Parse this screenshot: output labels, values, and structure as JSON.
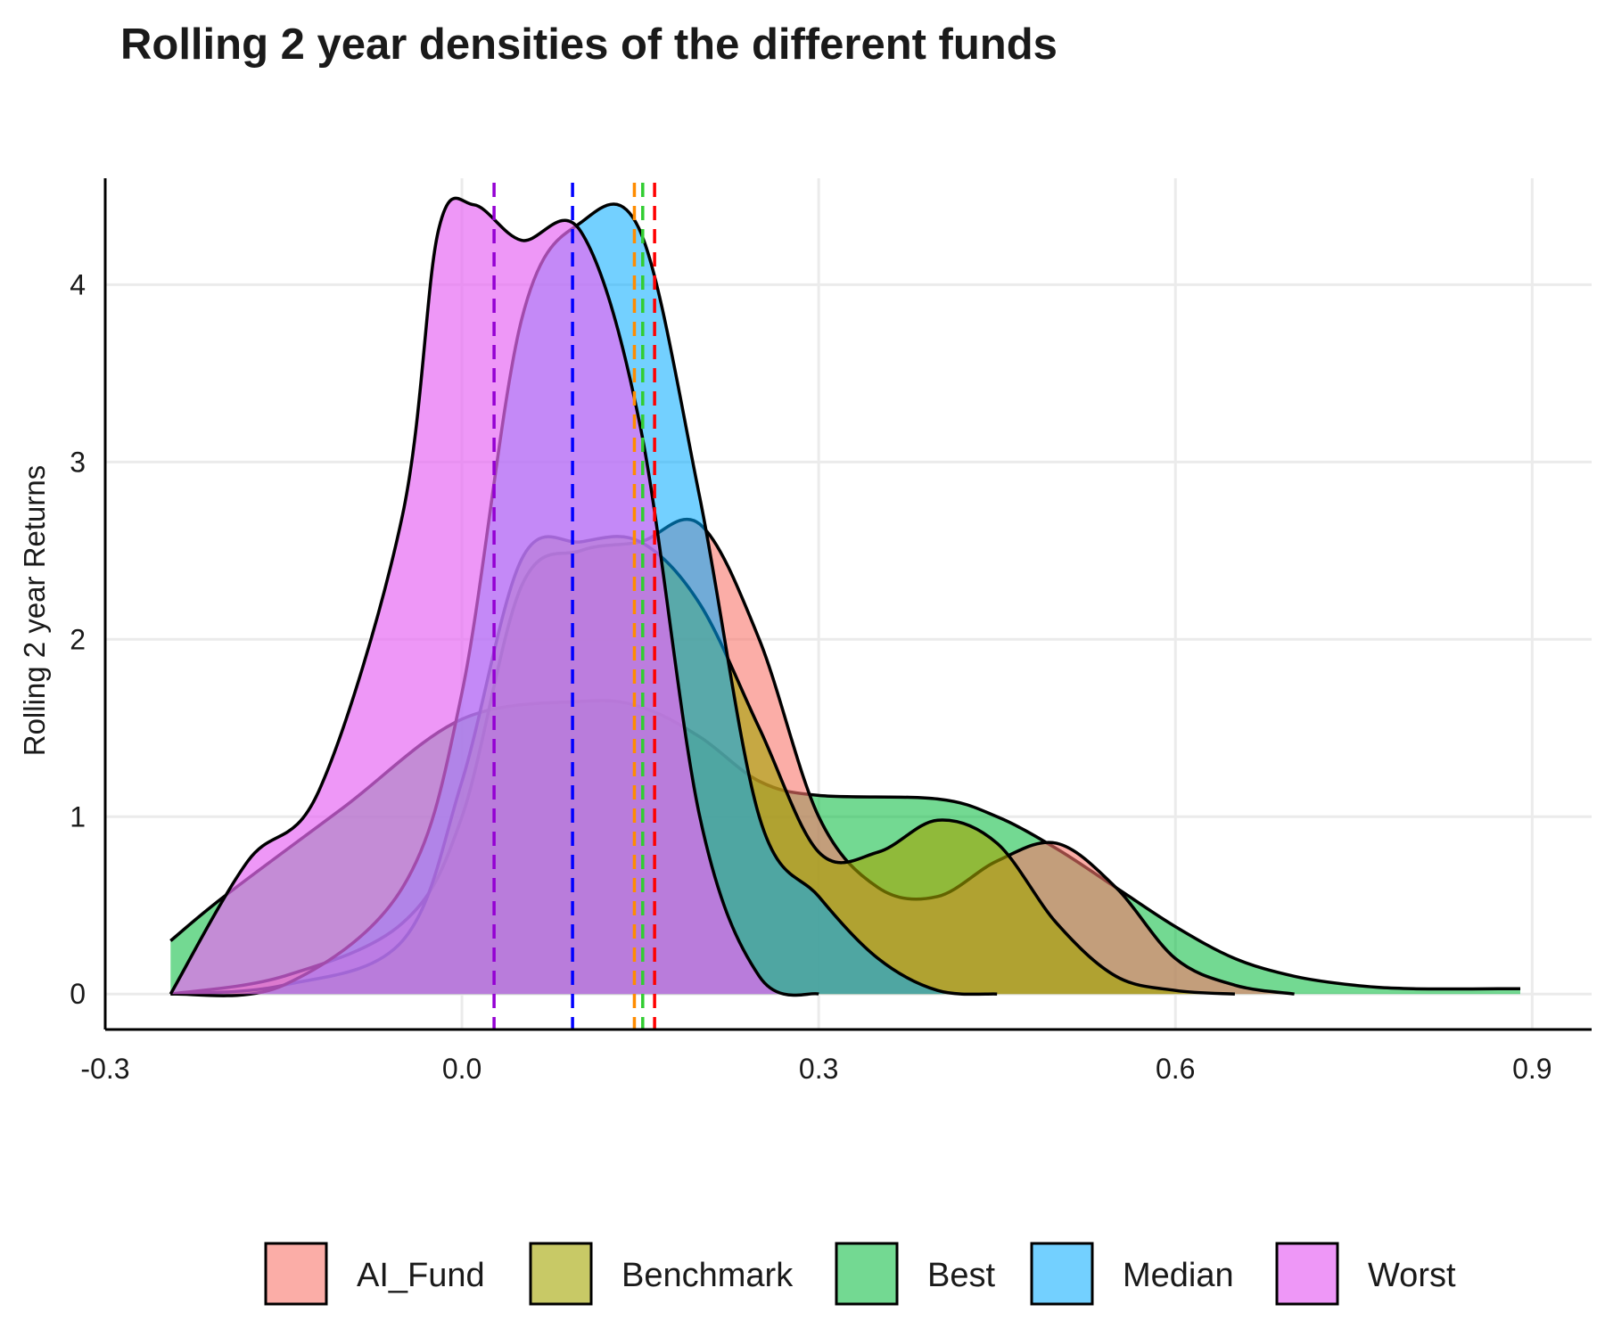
{
  "chart_data": {
    "type": "area",
    "title": "Rolling 2 year densities of the different funds",
    "xlabel": "",
    "ylabel": "Rolling 2 year Returns",
    "xlim": [
      -0.3,
      0.95
    ],
    "ylim": [
      -0.2,
      4.6
    ],
    "x_ticks": [
      {
        "value": -0.3,
        "label": "-0.3"
      },
      {
        "value": 0.0,
        "label": "0.0"
      },
      {
        "value": 0.3,
        "label": "0.3"
      },
      {
        "value": 0.6,
        "label": "0.6"
      },
      {
        "value": 0.9,
        "label": "0.9"
      }
    ],
    "y_ticks": [
      {
        "value": 0,
        "label": "0"
      },
      {
        "value": 1,
        "label": "1"
      },
      {
        "value": 2,
        "label": "2"
      },
      {
        "value": 3,
        "label": "3"
      },
      {
        "value": 4,
        "label": "4"
      }
    ],
    "grid": true,
    "legend_position": "bottom",
    "series": [
      {
        "name": "Best",
        "color": "#00BA38",
        "fill_opacity": 0.55,
        "points": [
          [
            -0.245,
            0.3
          ],
          [
            -0.2,
            0.55
          ],
          [
            -0.1,
            1.05
          ],
          [
            0.0,
            1.55
          ],
          [
            0.1,
            1.65
          ],
          [
            0.15,
            1.62
          ],
          [
            0.2,
            1.45
          ],
          [
            0.25,
            1.2
          ],
          [
            0.3,
            1.12
          ],
          [
            0.4,
            1.1
          ],
          [
            0.45,
            1.0
          ],
          [
            0.5,
            0.82
          ],
          [
            0.55,
            0.6
          ],
          [
            0.6,
            0.38
          ],
          [
            0.65,
            0.2
          ],
          [
            0.7,
            0.1
          ],
          [
            0.75,
            0.05
          ],
          [
            0.8,
            0.03
          ],
          [
            0.89,
            0.03
          ]
        ]
      },
      {
        "name": "AI_Fund",
        "color": "#F8766D",
        "fill_opacity": 0.6,
        "points": [
          [
            -0.245,
            0.0
          ],
          [
            -0.15,
            0.1
          ],
          [
            -0.05,
            0.4
          ],
          [
            0.0,
            1.0
          ],
          [
            0.05,
            2.3
          ],
          [
            0.1,
            2.5
          ],
          [
            0.15,
            2.55
          ],
          [
            0.2,
            2.65
          ],
          [
            0.25,
            2.0
          ],
          [
            0.3,
            1.0
          ],
          [
            0.35,
            0.6
          ],
          [
            0.4,
            0.55
          ],
          [
            0.45,
            0.75
          ],
          [
            0.5,
            0.85
          ],
          [
            0.55,
            0.6
          ],
          [
            0.6,
            0.2
          ],
          [
            0.65,
            0.05
          ],
          [
            0.7,
            0.0
          ]
        ]
      },
      {
        "name": "Benchmark",
        "color": "#A3A500",
        "fill_opacity": 0.6,
        "points": [
          [
            -0.245,
            0.0
          ],
          [
            -0.15,
            0.05
          ],
          [
            -0.05,
            0.3
          ],
          [
            0.0,
            1.2
          ],
          [
            0.05,
            2.45
          ],
          [
            0.1,
            2.55
          ],
          [
            0.15,
            2.55
          ],
          [
            0.2,
            2.2
          ],
          [
            0.25,
            1.5
          ],
          [
            0.3,
            0.8
          ],
          [
            0.35,
            0.8
          ],
          [
            0.4,
            0.98
          ],
          [
            0.45,
            0.85
          ],
          [
            0.5,
            0.4
          ],
          [
            0.55,
            0.1
          ],
          [
            0.6,
            0.02
          ],
          [
            0.65,
            0.0
          ]
        ]
      },
      {
        "name": "Median",
        "color": "#00A9FF",
        "fill_opacity": 0.55,
        "points": [
          [
            -0.245,
            0.0
          ],
          [
            -0.15,
            0.05
          ],
          [
            -0.05,
            0.6
          ],
          [
            0.0,
            1.7
          ],
          [
            0.05,
            3.8
          ],
          [
            0.1,
            4.35
          ],
          [
            0.15,
            4.3
          ],
          [
            0.2,
            2.8
          ],
          [
            0.25,
            1.0
          ],
          [
            0.3,
            0.55
          ],
          [
            0.35,
            0.2
          ],
          [
            0.4,
            0.02
          ],
          [
            0.45,
            0.0
          ]
        ]
      },
      {
        "name": "Worst",
        "color": "#E76BF3",
        "fill_opacity": 0.7,
        "points": [
          [
            -0.245,
            0.0
          ],
          [
            -0.18,
            0.75
          ],
          [
            -0.12,
            1.15
          ],
          [
            -0.05,
            2.7
          ],
          [
            -0.02,
            4.3
          ],
          [
            0.01,
            4.45
          ],
          [
            0.05,
            4.25
          ],
          [
            0.1,
            4.3
          ],
          [
            0.15,
            3.2
          ],
          [
            0.2,
            1.0
          ],
          [
            0.25,
            0.1
          ],
          [
            0.3,
            0.0
          ]
        ]
      }
    ],
    "legend_order": [
      "AI_Fund",
      "Benchmark",
      "Best",
      "Median",
      "Worst"
    ],
    "vlines": [
      {
        "x": 0.027,
        "color": "#9400D3"
      },
      {
        "x": 0.093,
        "color": "#0000FF"
      },
      {
        "x": 0.145,
        "color": "#FF8C00"
      },
      {
        "x": 0.152,
        "color": "#32CD32"
      },
      {
        "x": 0.162,
        "color": "#FF0000"
      }
    ]
  }
}
